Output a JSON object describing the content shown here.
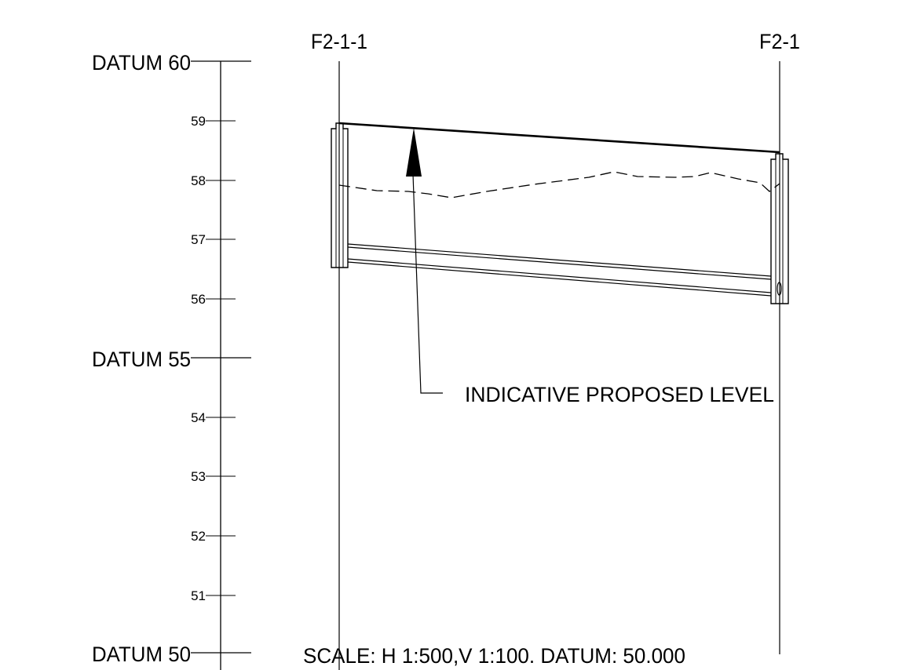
{
  "scale_bar": {
    "datum_labels": [
      "DATUM 60",
      "DATUM 55",
      "DATUM 50"
    ],
    "tick_labels": [
      "59",
      "58",
      "57",
      "56",
      "54",
      "53",
      "52",
      "51"
    ]
  },
  "manholes": {
    "left_label": "F2-1-1",
    "right_label": "F2-1"
  },
  "annotation": {
    "proposed_level": "INDICATIVE  PROPOSED LEVEL"
  },
  "footer": {
    "scale_note": "SCALE: H 1:500,V 1:100. DATUM: 50.000"
  },
  "profile": {
    "datum_level": 50,
    "top_level": 60,
    "proposed_level": {
      "start": 58.97,
      "end": 58.5
    },
    "existing_ground": [
      57.9,
      57.85,
      57.83,
      57.7,
      57.8,
      57.95,
      58.05,
      58.15,
      58.05,
      58.05,
      58.1,
      57.95,
      57.9,
      57.8
    ],
    "pipe_invert": {
      "start": 56.92,
      "end": 56.35
    },
    "pipe_crown": {
      "start": 56.65,
      "end": 56.05
    }
  },
  "colors": {
    "line": "#000000",
    "background": "#ffffff"
  }
}
